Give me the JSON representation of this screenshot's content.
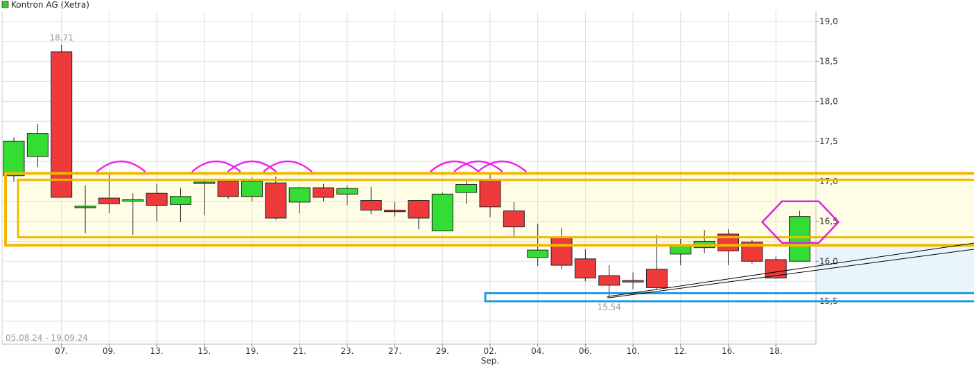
{
  "legend": {
    "label": "Kontron AG (Xetra)",
    "color": "#33cc33"
  },
  "chart_data": {
    "type": "candlestick",
    "title": "Kontron AG (Xetra)",
    "date_range_label": "05.08.24 - 19.09.24",
    "y_axis": {
      "side": "right",
      "ylim": [
        15.0,
        19.2
      ],
      "ticks": [
        15.5,
        16.0,
        16.5,
        17.0,
        17.5,
        18.0,
        18.5,
        19.0
      ]
    },
    "x_ticks": [
      {
        "label": "07.",
        "index": 2
      },
      {
        "label": "09.",
        "index": 4
      },
      {
        "label": "13.",
        "index": 6
      },
      {
        "label": "15.",
        "index": 8
      },
      {
        "label": "19.",
        "index": 10
      },
      {
        "label": "21.",
        "index": 12
      },
      {
        "label": "23.",
        "index": 14
      },
      {
        "label": "27.",
        "index": 16
      },
      {
        "label": "29.",
        "index": 18
      },
      {
        "label": "02.",
        "index": 20,
        "sublabel": "Sep."
      },
      {
        "label": "04.",
        "index": 22
      },
      {
        "label": "06.",
        "index": 24
      },
      {
        "label": "10.",
        "index": 26
      },
      {
        "label": "12.",
        "index": 28
      },
      {
        "label": "16.",
        "index": 30
      },
      {
        "label": "18.",
        "index": 32
      }
    ],
    "candles": [
      {
        "open": 17.07,
        "high": 17.55,
        "low": 17.0,
        "close": 17.5
      },
      {
        "open": 17.31,
        "high": 17.72,
        "low": 17.18,
        "close": 17.6
      },
      {
        "open": 18.62,
        "high": 18.71,
        "low": 16.8,
        "close": 16.8
      },
      {
        "open": 16.67,
        "high": 16.95,
        "low": 16.35,
        "close": 16.69
      },
      {
        "open": 16.79,
        "high": 17.1,
        "low": 16.6,
        "close": 16.72
      },
      {
        "open": 16.77,
        "high": 16.85,
        "low": 16.33,
        "close": 16.77
      },
      {
        "open": 16.85,
        "high": 16.97,
        "low": 16.5,
        "close": 16.7
      },
      {
        "open": 16.71,
        "high": 16.92,
        "low": 16.49,
        "close": 16.81
      },
      {
        "open": 16.98,
        "high": 17.02,
        "low": 16.58,
        "close": 16.99
      },
      {
        "open": 17.0,
        "high": 17.03,
        "low": 16.78,
        "close": 16.81
      },
      {
        "open": 16.81,
        "high": 17.05,
        "low": 16.75,
        "close": 17.0
      },
      {
        "open": 16.98,
        "high": 17.06,
        "low": 16.52,
        "close": 16.54
      },
      {
        "open": 16.74,
        "high": 16.93,
        "low": 16.6,
        "close": 16.92
      },
      {
        "open": 16.92,
        "high": 16.97,
        "low": 16.75,
        "close": 16.8
      },
      {
        "open": 16.84,
        "high": 16.95,
        "low": 16.7,
        "close": 16.91
      },
      {
        "open": 16.76,
        "high": 16.93,
        "low": 16.59,
        "close": 16.64
      },
      {
        "open": 16.64,
        "high": 16.74,
        "low": 16.56,
        "close": 16.62
      },
      {
        "open": 16.76,
        "high": 16.76,
        "low": 16.4,
        "close": 16.54
      },
      {
        "open": 16.38,
        "high": 16.86,
        "low": 16.38,
        "close": 16.84
      },
      {
        "open": 16.86,
        "high": 17.0,
        "low": 16.72,
        "close": 16.96
      },
      {
        "open": 17.01,
        "high": 17.1,
        "low": 16.55,
        "close": 16.68
      },
      {
        "open": 16.63,
        "high": 16.74,
        "low": 16.3,
        "close": 16.43
      },
      {
        "open": 16.05,
        "high": 16.47,
        "low": 15.94,
        "close": 16.14
      },
      {
        "open": 16.3,
        "high": 16.42,
        "low": 15.9,
        "close": 15.95
      },
      {
        "open": 16.03,
        "high": 16.15,
        "low": 15.75,
        "close": 15.79
      },
      {
        "open": 15.82,
        "high": 15.95,
        "low": 15.54,
        "close": 15.7
      },
      {
        "open": 15.76,
        "high": 15.86,
        "low": 15.65,
        "close": 15.74
      },
      {
        "open": 15.9,
        "high": 16.33,
        "low": 15.65,
        "close": 15.67
      },
      {
        "open": 16.09,
        "high": 16.28,
        "low": 15.95,
        "close": 16.19
      },
      {
        "open": 16.17,
        "high": 16.39,
        "low": 16.1,
        "close": 16.25
      },
      {
        "open": 16.34,
        "high": 16.4,
        "low": 15.95,
        "close": 16.13
      },
      {
        "open": 16.24,
        "high": 16.27,
        "low": 15.97,
        "close": 16.0
      },
      {
        "open": 16.02,
        "high": 16.06,
        "low": 15.78,
        "close": 15.79
      },
      {
        "open": 16.0,
        "high": 16.63,
        "low": 16.0,
        "close": 16.56
      }
    ],
    "annotations": {
      "high_label": {
        "text": "18,71",
        "index": 2,
        "value": 18.71
      },
      "low_label": {
        "text": "15,54",
        "index": 25,
        "value": 15.54
      }
    },
    "drawings": {
      "yellow_zone": {
        "color": "#f2b800",
        "fill": "#fffde6",
        "outer": [
          16.2,
          17.1
        ],
        "inner": [
          16.3,
          17.02
        ],
        "start_index": 0
      },
      "blue_zone": {
        "color": "#2299dd",
        "fill": "#e8f5fb",
        "top": 15.6,
        "bottom": 15.5,
        "start_index": 20
      },
      "support_band_fill": {
        "from_value": 16.2,
        "to_value": 15.6,
        "color": "#e8f5fb"
      },
      "trendline": {
        "color": "#000000",
        "from": {
          "index": 25,
          "value": 15.54
        },
        "to_price_at_edge": 16.15,
        "offset": 0.06
      },
      "arcs": {
        "color": "#ee22ee",
        "indices": [
          4.5,
          8.5,
          10.0,
          11.5,
          18.5,
          19.5,
          20.5
        ],
        "value": 17.12
      },
      "hexagon": {
        "color": "#dd22dd",
        "index": 33,
        "value": 16.49
      }
    },
    "colors": {
      "up": "#33dd33",
      "down": "#ee3a3a",
      "grid": "#dddddd",
      "axis_text": "#333333",
      "muted_text": "#999999"
    }
  }
}
